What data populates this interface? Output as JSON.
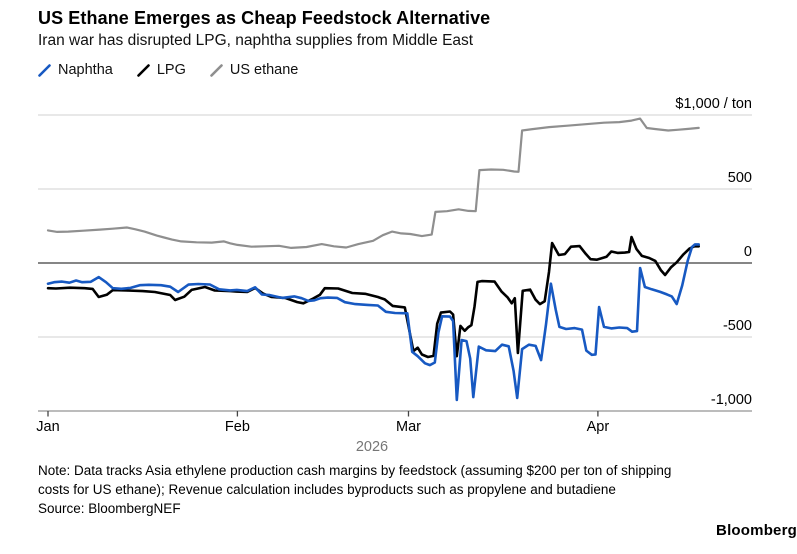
{
  "header": {
    "title": "US Ethane Emerges as Cheap Feedstock Alternative",
    "subtitle": "Iran war has disrupted LPG, naphtha supplies from Middle East"
  },
  "legend": [
    {
      "label": "Naphtha",
      "color": "#1759c2"
    },
    {
      "label": "LPG",
      "color": "#000000"
    },
    {
      "label": "US ethane",
      "color": "#8f8f8f"
    }
  ],
  "footer": {
    "note_line1": "Note: Data tracks Asia ethylene production cash margins by feedstock (assuming $200 per ton of shipping",
    "note_line2": "costs for US ethane); Revenue calculation includes byproducts such as propylene and butadiene",
    "source": "Source: BloombergNEF",
    "brand": "Bloomberg"
  },
  "chart_data": {
    "type": "line",
    "title": "US Ethane Emerges as Cheap Feedstock Alternative",
    "subtitle": "Iran war has disrupted LPG, naphtha supplies from Middle East",
    "unit_label": "$1,000 / ton",
    "legend_position": "top-left",
    "grid": "horizontal",
    "ylim": [
      -1100,
      1100
    ],
    "x_axis": {
      "year": "2026",
      "ticks": [
        {
          "label": "Jan",
          "day": 0
        },
        {
          "label": "Feb",
          "day": 31
        },
        {
          "label": "Mar",
          "day": 59
        },
        {
          "label": "Apr",
          "day": 90
        }
      ]
    },
    "y_axis": {
      "ticks": [
        {
          "value": 1000,
          "label": "$1,000 / ton"
        },
        {
          "value": 500,
          "label": "500"
        },
        {
          "value": 0,
          "label": "0"
        },
        {
          "value": -500,
          "label": "-500"
        },
        {
          "value": -1000,
          "label": "-1,000"
        }
      ]
    },
    "style": {
      "grid_color": "#d1d1d1",
      "zero_line_color": "#3d3d3d",
      "base_line_color": "#a6a6a6",
      "tick_color": "#444444",
      "year_color": "#767676"
    },
    "series": [
      {
        "name": "US ethane",
        "color": "#8f8f8f",
        "width": 2.2,
        "points": [
          [
            0,
            220
          ],
          [
            1.5,
            210
          ],
          [
            3.3,
            212
          ],
          [
            5.8,
            218
          ],
          [
            8.5,
            226
          ],
          [
            10.6,
            232
          ],
          [
            12.9,
            240
          ],
          [
            14.3,
            228
          ],
          [
            15.8,
            212
          ],
          [
            17.8,
            185
          ],
          [
            19,
            172
          ],
          [
            20.3,
            158
          ],
          [
            21.8,
            146
          ],
          [
            24.3,
            140
          ],
          [
            26.8,
            138
          ],
          [
            28.8,
            146
          ],
          [
            29.8,
            133
          ],
          [
            31,
            122
          ],
          [
            33.3,
            110
          ],
          [
            35.3,
            113
          ],
          [
            37.8,
            116
          ],
          [
            39.8,
            102
          ],
          [
            42.3,
            108
          ],
          [
            44.8,
            128
          ],
          [
            46.8,
            113
          ],
          [
            48.8,
            105
          ],
          [
            50.8,
            128
          ],
          [
            53.2,
            150
          ],
          [
            54.8,
            188
          ],
          [
            56.3,
            212
          ],
          [
            57.8,
            200
          ],
          [
            59.3,
            196
          ],
          [
            61.2,
            182
          ],
          [
            62.8,
            192
          ],
          [
            63.4,
            345
          ],
          [
            65.3,
            350
          ],
          [
            67.2,
            363
          ],
          [
            68.8,
            352
          ],
          [
            70,
            350
          ],
          [
            70.6,
            628
          ],
          [
            72.5,
            632
          ],
          [
            74.5,
            630
          ],
          [
            76.3,
            618
          ],
          [
            77,
            616
          ],
          [
            77.6,
            895
          ],
          [
            79.3,
            905
          ],
          [
            82,
            918
          ],
          [
            85,
            928
          ],
          [
            88,
            938
          ],
          [
            91,
            948
          ],
          [
            93.5,
            952
          ],
          [
            95.5,
            962
          ],
          [
            96.9,
            976
          ],
          [
            98,
            912
          ],
          [
            99.5,
            905
          ],
          [
            101.5,
            895
          ],
          [
            103,
            900
          ],
          [
            104.8,
            906
          ],
          [
            106.5,
            913
          ]
        ]
      },
      {
        "name": "LPG",
        "color": "#000000",
        "width": 2.6,
        "points": [
          [
            0,
            -170
          ],
          [
            1.3,
            -172
          ],
          [
            3.6,
            -167
          ],
          [
            6,
            -170
          ],
          [
            7.3,
            -175
          ],
          [
            8.3,
            -230
          ],
          [
            9.6,
            -215
          ],
          [
            10.6,
            -183
          ],
          [
            12.9,
            -186
          ],
          [
            15.5,
            -190
          ],
          [
            17.5,
            -196
          ],
          [
            20,
            -216
          ],
          [
            20.8,
            -250
          ],
          [
            22.3,
            -228
          ],
          [
            23.5,
            -182
          ],
          [
            25.7,
            -162
          ],
          [
            27.3,
            -186
          ],
          [
            29.8,
            -190
          ],
          [
            30.9,
            -193
          ],
          [
            32.6,
            -196
          ],
          [
            33.9,
            -169
          ],
          [
            35.2,
            -207
          ],
          [
            36.6,
            -230
          ],
          [
            38.8,
            -236
          ],
          [
            40.8,
            -264
          ],
          [
            41.8,
            -272
          ],
          [
            43.4,
            -240
          ],
          [
            44.5,
            -215
          ],
          [
            45.3,
            -170
          ],
          [
            47.5,
            -172
          ],
          [
            49.8,
            -203
          ],
          [
            51.9,
            -208
          ],
          [
            54,
            -230
          ],
          [
            55.1,
            -246
          ],
          [
            56.4,
            -290
          ],
          [
            58.4,
            -300
          ],
          [
            59.8,
            -595
          ],
          [
            60.5,
            -572
          ],
          [
            61.2,
            -618
          ],
          [
            62.2,
            -635
          ],
          [
            63.1,
            -628
          ],
          [
            63.7,
            -410
          ],
          [
            64.3,
            -335
          ],
          [
            65.8,
            -328
          ],
          [
            66.3,
            -348
          ],
          [
            66.9,
            -630
          ],
          [
            67.5,
            -425
          ],
          [
            68.2,
            -458
          ],
          [
            68.8,
            -433
          ],
          [
            69.3,
            -420
          ],
          [
            69.8,
            -295
          ],
          [
            70.3,
            -128
          ],
          [
            71,
            -122
          ],
          [
            73.1,
            -126
          ],
          [
            74.2,
            -192
          ],
          [
            75.2,
            -232
          ],
          [
            75.9,
            -272
          ],
          [
            76.4,
            -238
          ],
          [
            76.9,
            -608
          ],
          [
            77.7,
            -188
          ],
          [
            78.9,
            -180
          ],
          [
            79.8,
            -248
          ],
          [
            80.5,
            -278
          ],
          [
            81.3,
            -258
          ],
          [
            82,
            -60
          ],
          [
            82.5,
            135
          ],
          [
            83.6,
            54
          ],
          [
            84.6,
            60
          ],
          [
            85.6,
            110
          ],
          [
            87,
            114
          ],
          [
            88,
            62
          ],
          [
            88.8,
            26
          ],
          [
            89.8,
            22
          ],
          [
            90.6,
            32
          ],
          [
            91.4,
            42
          ],
          [
            92.2,
            78
          ],
          [
            93.2,
            68
          ],
          [
            94.4,
            70
          ],
          [
            95.1,
            74
          ],
          [
            95.5,
            176
          ],
          [
            96.3,
            95
          ],
          [
            97.2,
            48
          ],
          [
            98.4,
            34
          ],
          [
            99.4,
            14
          ],
          [
            100.3,
            -48
          ],
          [
            101,
            -81
          ],
          [
            102,
            -28
          ],
          [
            102.9,
            5
          ],
          [
            104,
            58
          ],
          [
            105,
            98
          ],
          [
            105.8,
            113
          ],
          [
            106.5,
            113
          ]
        ]
      },
      {
        "name": "Naphtha",
        "color": "#1759c2",
        "width": 2.6,
        "points": [
          [
            0,
            -140
          ],
          [
            1,
            -130
          ],
          [
            2.3,
            -126
          ],
          [
            3.5,
            -133
          ],
          [
            4.6,
            -118
          ],
          [
            5.6,
            -130
          ],
          [
            7,
            -127
          ],
          [
            8.3,
            -95
          ],
          [
            9.5,
            -130
          ],
          [
            10.6,
            -170
          ],
          [
            12,
            -174
          ],
          [
            13.5,
            -168
          ],
          [
            15,
            -150
          ],
          [
            16.5,
            -147
          ],
          [
            18.5,
            -150
          ],
          [
            20,
            -160
          ],
          [
            21.3,
            -196
          ],
          [
            23,
            -146
          ],
          [
            24.6,
            -142
          ],
          [
            26.5,
            -145
          ],
          [
            28,
            -178
          ],
          [
            29.8,
            -185
          ],
          [
            30.9,
            -182
          ],
          [
            32.6,
            -190
          ],
          [
            33.9,
            -164
          ],
          [
            35,
            -213
          ],
          [
            36.3,
            -217
          ],
          [
            38.3,
            -236
          ],
          [
            40.3,
            -226
          ],
          [
            41.5,
            -238
          ],
          [
            42.6,
            -256
          ],
          [
            43.6,
            -252
          ],
          [
            44.6,
            -238
          ],
          [
            45.8,
            -234
          ],
          [
            47.3,
            -236
          ],
          [
            48.6,
            -265
          ],
          [
            50.3,
            -278
          ],
          [
            52.3,
            -283
          ],
          [
            54,
            -287
          ],
          [
            55.3,
            -330
          ],
          [
            56.8,
            -338
          ],
          [
            58.8,
            -340
          ],
          [
            59.6,
            -600
          ],
          [
            60.5,
            -630
          ],
          [
            61.7,
            -678
          ],
          [
            62.5,
            -690
          ],
          [
            63.3,
            -672
          ],
          [
            63.9,
            -470
          ],
          [
            64.5,
            -360
          ],
          [
            65.8,
            -362
          ],
          [
            66.3,
            -392
          ],
          [
            66.9,
            -926
          ],
          [
            67.7,
            -520
          ],
          [
            68.5,
            -528
          ],
          [
            69.1,
            -645
          ],
          [
            69.6,
            -906
          ],
          [
            70.5,
            -565
          ],
          [
            71.7,
            -590
          ],
          [
            73.2,
            -595
          ],
          [
            74.3,
            -552
          ],
          [
            75.4,
            -563
          ],
          [
            76.2,
            -730
          ],
          [
            76.8,
            -912
          ],
          [
            77.6,
            -582
          ],
          [
            78.7,
            -552
          ],
          [
            79.8,
            -560
          ],
          [
            80.7,
            -656
          ],
          [
            81.5,
            -415
          ],
          [
            82.3,
            -140
          ],
          [
            83.1,
            -315
          ],
          [
            83.7,
            -432
          ],
          [
            84.8,
            -446
          ],
          [
            86.2,
            -440
          ],
          [
            87.4,
            -450
          ],
          [
            88.1,
            -592
          ],
          [
            89,
            -620
          ],
          [
            89.6,
            -618
          ],
          [
            90.2,
            -297
          ],
          [
            91,
            -432
          ],
          [
            92.2,
            -442
          ],
          [
            93.5,
            -436
          ],
          [
            94.8,
            -440
          ],
          [
            95.6,
            -464
          ],
          [
            96.4,
            -460
          ],
          [
            96.9,
            -34
          ],
          [
            97.7,
            -162
          ],
          [
            98.8,
            -178
          ],
          [
            100.2,
            -195
          ],
          [
            101.3,
            -212
          ],
          [
            102.1,
            -226
          ],
          [
            102.9,
            -277
          ],
          [
            103.8,
            -152
          ],
          [
            104.7,
            15
          ],
          [
            105.4,
            108
          ],
          [
            105.9,
            126
          ],
          [
            106.5,
            126
          ]
        ]
      }
    ]
  }
}
